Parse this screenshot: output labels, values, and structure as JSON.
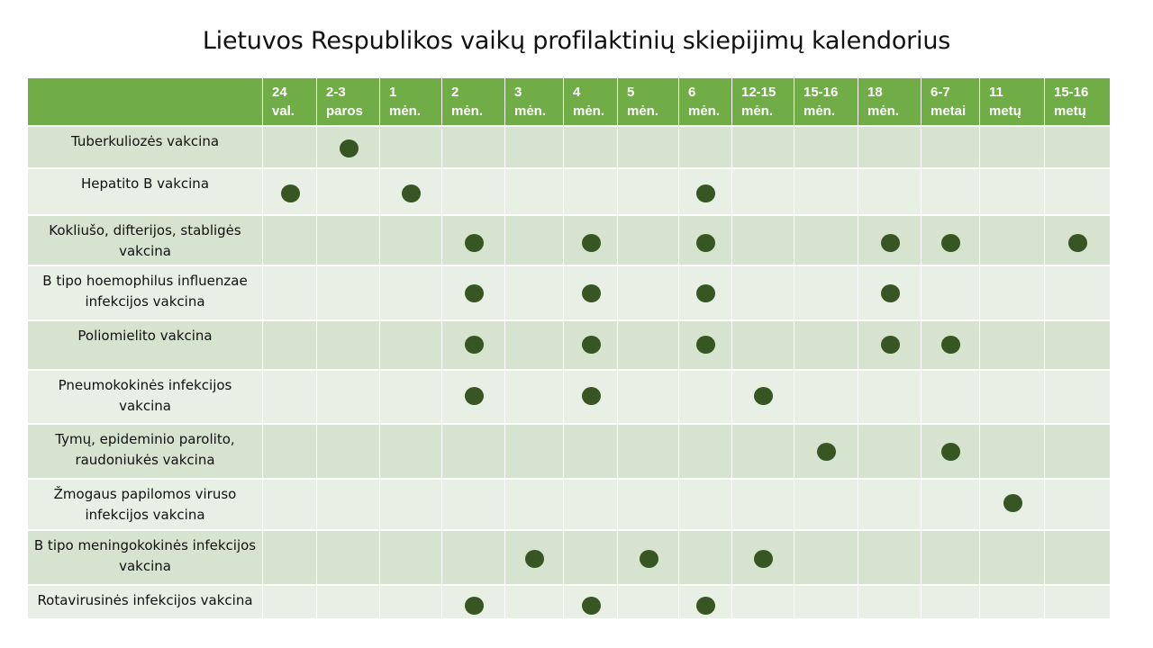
{
  "title": "Lietuvos Respublikos vaikų profilaktinių skiepijimų kalendorius",
  "columns": [
    {
      "l1": "24",
      "l2": "val."
    },
    {
      "l1": "2-3",
      "l2": "paros"
    },
    {
      "l1": "1",
      "l2": "mėn."
    },
    {
      "l1": "2",
      "l2": "mėn."
    },
    {
      "l1": "3",
      "l2": "mėn."
    },
    {
      "l1": "4",
      "l2": "mėn."
    },
    {
      "l1": "5",
      "l2": "mėn."
    },
    {
      "l1": "6",
      "l2": "mėn."
    },
    {
      "l1": "12-15",
      "l2": "mėn."
    },
    {
      "l1": "15-16",
      "l2": "mėn."
    },
    {
      "l1": "18",
      "l2": "mėn."
    },
    {
      "l1": "6-7",
      "l2": "metai"
    },
    {
      "l1": "11",
      "l2": "metų"
    },
    {
      "l1": "15-16",
      "l2": "metų"
    }
  ],
  "rows": [
    {
      "label": "Tuberkuliozės vakcina",
      "doses": [
        1
      ]
    },
    {
      "label": "Hepatito B vakcina",
      "doses": [
        0,
        2,
        7
      ]
    },
    {
      "label": "Kokliušo, difterijos, stabligės vakcina",
      "doses": [
        3,
        5,
        7,
        10,
        11,
        13
      ]
    },
    {
      "label": "B tipo hoemophilus influenzae infekcijos  vakcina",
      "doses": [
        3,
        5,
        7,
        10
      ]
    },
    {
      "label": "Poliomielito vakcina",
      "doses": [
        3,
        5,
        7,
        10,
        11
      ]
    },
    {
      "label": "Pneumokokinės infekcijos vakcina",
      "doses": [
        3,
        5,
        8
      ]
    },
    {
      "label": "Tymų, epideminio parolito, raudoniukės vakcina",
      "doses": [
        9,
        11
      ]
    },
    {
      "label": "Žmogaus papilomos viruso infekcijos vakcina",
      "doses": [
        12
      ]
    },
    {
      "label": "B tipo meningokokinės infekcijos vakcina",
      "doses": [
        4,
        6,
        8
      ]
    },
    {
      "label": "Rotavirusinės infekcijos vakcina",
      "doses": [
        3,
        5,
        7
      ]
    }
  ],
  "colors": {
    "header": "#70ad47",
    "row_dark": "#d5e3cf",
    "row_light": "#e8efe5",
    "dot": "#375623"
  }
}
